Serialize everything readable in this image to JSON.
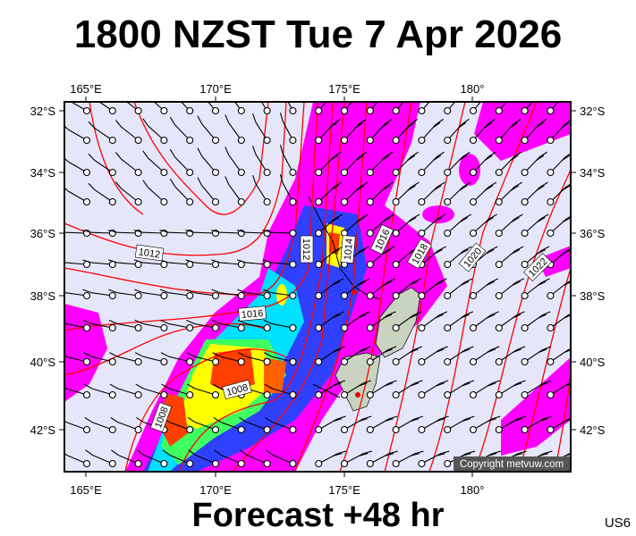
{
  "title": "1800 NZST Tue 7 Apr 2026",
  "footer": "Forecast +48 hr",
  "region_code": "US6",
  "copyright": "Copyright metvuw.com",
  "longitude_labels": [
    "165°E",
    "170°E",
    "175°E",
    "180°"
  ],
  "latitude_labels": [
    "32°S",
    "34°S",
    "36°S",
    "38°S",
    "40°S",
    "42°S"
  ],
  "isobar_labels": [
    "1012",
    "1012",
    "1014",
    "1016",
    "1018",
    "1020",
    "1022",
    "1016",
    "1008",
    "1008"
  ],
  "colors": {
    "background": "#e6e6fa",
    "isobar": "#ff0000",
    "land": "#c8d4c0",
    "precip_scale": [
      "#ff00ff",
      "#a020f0",
      "#0000ff",
      "#00a0ff",
      "#00ffff",
      "#00ff80",
      "#ffff00",
      "#ff8000",
      "#ff3000"
    ]
  }
}
